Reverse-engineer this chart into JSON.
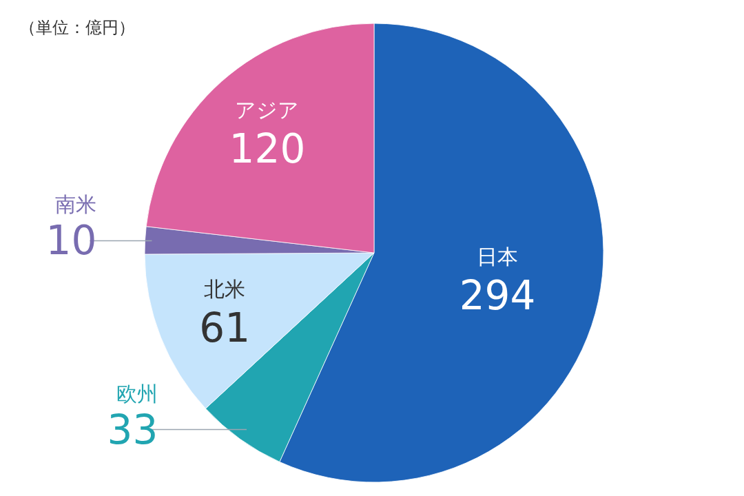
{
  "chart_data": {
    "type": "pie",
    "categories": [
      "日本",
      "欧州",
      "北米",
      "南米",
      "アジア"
    ],
    "values": [
      294,
      33,
      61,
      10,
      120
    ],
    "colors": [
      "#1e63b8",
      "#21a5b1",
      "#c5e4fc",
      "#786cb0",
      "#de62a0"
    ],
    "data_labels": true,
    "annotations": [
      "（単位：億円）"
    ]
  }
}
